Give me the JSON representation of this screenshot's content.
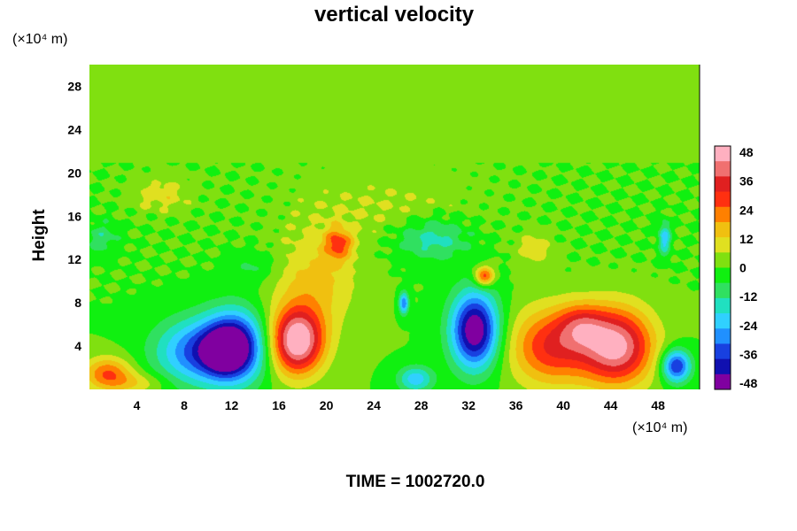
{
  "chart_data": {
    "type": "heatmap",
    "title": "vertical velocity",
    "ylabel": "Height",
    "xlabel": "",
    "x_unit": "(×10⁴ m)",
    "y_unit": "(×10⁴ m)",
    "footer": "TIME = 1002720.0",
    "xlim": [
      0,
      51.5
    ],
    "ylim": [
      0,
      30
    ],
    "x_ticks": [
      "4",
      "8",
      "12",
      "16",
      "20",
      "24",
      "28",
      "32",
      "36",
      "40",
      "44",
      "48"
    ],
    "y_ticks": [
      "4",
      "8",
      "12",
      "16",
      "20",
      "24",
      "28"
    ],
    "colorbar": {
      "min": -48,
      "max": 48,
      "ticks": [
        "48",
        "36",
        "24",
        "12",
        "0",
        "-12",
        "-24",
        "-36",
        "-48"
      ],
      "colors": [
        "#8000a0",
        "#1010b0",
        "#1840e0",
        "#2090ff",
        "#30d0ff",
        "#20e0c0",
        "#30e060",
        "#10f010",
        "#80e010",
        "#e0e020",
        "#f0c010",
        "#ff8000",
        "#ff3010",
        "#e02020",
        "#f07070",
        "#ffb0c0"
      ]
    },
    "background": 0,
    "features": [
      {
        "x": 1.5,
        "z": 1.5,
        "rx": 2.0,
        "rz": 1.5,
        "w": 24
      },
      {
        "x": 4.0,
        "z": 0.6,
        "rx": 2.5,
        "rz": 1.0,
        "w": 10
      },
      {
        "x": 9.0,
        "z": 3.5,
        "rx": 3.5,
        "rz": 3.0,
        "w": -30
      },
      {
        "x": 12.2,
        "z": 4.0,
        "rx": 2.5,
        "rz": 3.2,
        "w": -46
      },
      {
        "x": 11.2,
        "z": 3.5,
        "rx": 1.4,
        "rz": 1.6,
        "w": -20
      },
      {
        "x": 17.5,
        "z": 4.5,
        "rx": 2.2,
        "rz": 3.0,
        "w": 50
      },
      {
        "x": 19.0,
        "z": 10.0,
        "rx": 3.5,
        "rz": 4.5,
        "w": 14
      },
      {
        "x": 21.0,
        "z": 13.5,
        "rx": 1.2,
        "rz": 1.5,
        "w": 22
      },
      {
        "x": 29.0,
        "z": 14.0,
        "rx": 3.0,
        "rz": 2.0,
        "w": -16
      },
      {
        "x": 27.5,
        "z": 1.0,
        "rx": 1.5,
        "rz": 1.2,
        "w": -22
      },
      {
        "x": 32.5,
        "z": 5.5,
        "rx": 2.0,
        "rz": 3.5,
        "w": -50
      },
      {
        "x": 33.3,
        "z": 10.5,
        "rx": 0.8,
        "rz": 0.9,
        "w": 30
      },
      {
        "x": 39.0,
        "z": 4.0,
        "rx": 3.5,
        "rz": 3.5,
        "w": 30
      },
      {
        "x": 44.5,
        "z": 4.0,
        "rx": 3.0,
        "rz": 3.5,
        "w": 44
      },
      {
        "x": 41.5,
        "z": 6.0,
        "rx": 2.0,
        "rz": 2.0,
        "w": 18
      },
      {
        "x": 49.5,
        "z": 2.2,
        "rx": 1.2,
        "rz": 1.5,
        "w": -38
      },
      {
        "x": 48.5,
        "z": 14.0,
        "rx": 0.5,
        "rz": 1.5,
        "w": -22
      },
      {
        "x": 6.0,
        "z": 18.0,
        "rx": 2.5,
        "rz": 1.5,
        "w": 10
      },
      {
        "x": 25.0,
        "z": 17.0,
        "rx": 8.0,
        "rz": 3.0,
        "w": 6
      },
      {
        "x": 1.0,
        "z": 14.0,
        "rx": 1.5,
        "rz": 1.5,
        "w": -10
      },
      {
        "x": 37.5,
        "z": 13.0,
        "rx": 1.5,
        "rz": 1.5,
        "w": 10
      },
      {
        "x": 14.0,
        "z": 11.5,
        "rx": 2.0,
        "rz": 1.5,
        "w": -8
      },
      {
        "x": 26.5,
        "z": 8.0,
        "rx": 0.4,
        "rz": 1.0,
        "w": -30
      }
    ]
  }
}
